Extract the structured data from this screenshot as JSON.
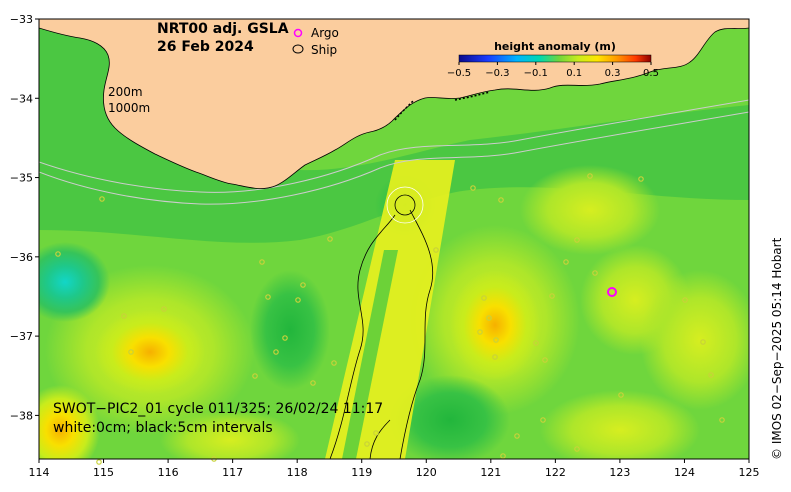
{
  "title": {
    "line1": "NRT00 adj. GSLA",
    "line2": "26 Feb 2024"
  },
  "legend": {
    "argo_label": "Argo",
    "ship_label": "Ship",
    "argo_color": "#ff00ff",
    "ship_color": "#000000"
  },
  "colorbar": {
    "title": "height anomaly (m)",
    "ticks": [
      "−0.5",
      "−0.3",
      "−0.1",
      "0.1",
      "0.3",
      "0.5"
    ],
    "range": [
      -0.5,
      0.5
    ]
  },
  "contour_labels": {
    "depth_200": "200m",
    "depth_1000": "1000m"
  },
  "swot": {
    "line1": "SWOT−PIC2_01 cycle 011/325; 26/02/24 11:17",
    "line2": "white:0cm; black:5cm intervals"
  },
  "credit": "© IMOS 02−Sep−2025 05:14 Hobart",
  "axes": {
    "x_ticks": [
      "114",
      "115",
      "116",
      "117",
      "118",
      "119",
      "120",
      "121",
      "122",
      "123",
      "124",
      "125"
    ],
    "y_ticks": [
      "−33",
      "−34",
      "−35",
      "−36",
      "−37",
      "−38"
    ],
    "xlim": [
      114,
      125
    ],
    "ylim": [
      -38.55,
      -33
    ]
  },
  "colors": {
    "land": "#fbcd9e",
    "background_green": "#6fd63d"
  }
}
